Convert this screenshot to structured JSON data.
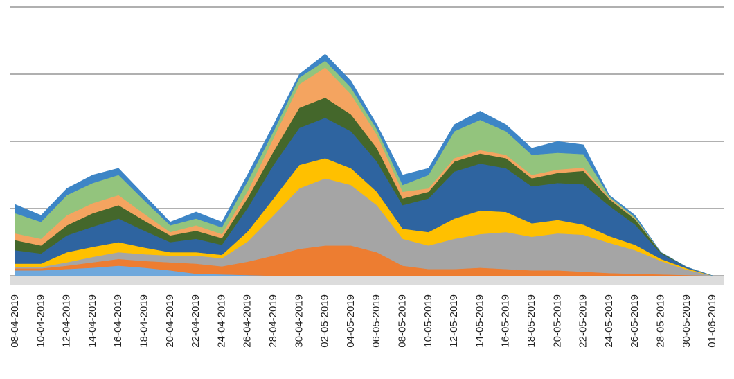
{
  "chart_data": {
    "type": "stacked_area",
    "categories": [
      "08-04-2019",
      "10-04-2019",
      "12-04-2019",
      "14-04-2019",
      "16-04-2019",
      "18-04-2019",
      "20-04-2019",
      "22-04-2019",
      "24-04-2019",
      "26-04-2019",
      "28-04-2019",
      "30-04-2019",
      "02-05-2019",
      "04-05-2019",
      "06-05-2019",
      "08-05-2019",
      "10-05-2019",
      "12-05-2019",
      "14-05-2019",
      "16-05-2019",
      "18-05-2019",
      "20-05-2019",
      "22-05-2019",
      "24-05-2019",
      "26-05-2019",
      "28-05-2019",
      "30-05-2019",
      "01-06-2019"
    ],
    "ylim": [
      0,
      4
    ],
    "yticks": [
      0,
      1,
      2,
      3,
      4
    ],
    "grid": true,
    "series": [
      {
        "color": "#6fa8dc",
        "values": [
          0.08,
          0.08,
          0.1,
          0.12,
          0.15,
          0.12,
          0.08,
          0.03,
          0.02,
          0.01,
          0,
          0,
          0,
          0,
          0,
          0,
          0,
          0,
          0,
          0,
          0,
          0,
          0,
          0,
          0,
          0,
          0,
          0
        ]
      },
      {
        "color": "#ed7d31",
        "values": [
          0.03,
          0.03,
          0.05,
          0.08,
          0.1,
          0.1,
          0.12,
          0.15,
          0.12,
          0.2,
          0.3,
          0.4,
          0.45,
          0.45,
          0.35,
          0.15,
          0.1,
          0.1,
          0.12,
          0.1,
          0.08,
          0.08,
          0.06,
          0.04,
          0.03,
          0.02,
          0.01,
          0
        ]
      },
      {
        "color": "#a5a5a5",
        "values": [
          0.02,
          0.02,
          0.05,
          0.08,
          0.1,
          0.1,
          0.1,
          0.12,
          0.12,
          0.3,
          0.6,
          0.9,
          1.0,
          0.9,
          0.7,
          0.4,
          0.35,
          0.45,
          0.5,
          0.55,
          0.5,
          0.55,
          0.55,
          0.45,
          0.35,
          0.2,
          0.08,
          0
        ]
      },
      {
        "color": "#ffc000",
        "values": [
          0.05,
          0.05,
          0.15,
          0.15,
          0.15,
          0.1,
          0.05,
          0.05,
          0.05,
          0.15,
          0.25,
          0.35,
          0.3,
          0.25,
          0.2,
          0.15,
          0.2,
          0.3,
          0.35,
          0.3,
          0.2,
          0.2,
          0.15,
          0.1,
          0.08,
          0.03,
          0.02,
          0
        ]
      },
      {
        "color": "#2e64a0",
        "values": [
          0.2,
          0.15,
          0.25,
          0.3,
          0.35,
          0.25,
          0.15,
          0.2,
          0.15,
          0.35,
          0.5,
          0.55,
          0.6,
          0.55,
          0.45,
          0.35,
          0.5,
          0.7,
          0.7,
          0.65,
          0.55,
          0.55,
          0.6,
          0.45,
          0.3,
          0.08,
          0.02,
          0
        ]
      },
      {
        "color": "#44672b",
        "values": [
          0.15,
          0.12,
          0.15,
          0.2,
          0.2,
          0.15,
          0.1,
          0.12,
          0.1,
          0.15,
          0.2,
          0.3,
          0.3,
          0.25,
          0.2,
          0.1,
          0.1,
          0.15,
          0.15,
          0.15,
          0.12,
          0.15,
          0.2,
          0.1,
          0.08,
          0.02,
          0,
          0
        ]
      },
      {
        "color": "#f4a460",
        "values": [
          0.1,
          0.1,
          0.15,
          0.15,
          0.15,
          0.1,
          0.05,
          0.08,
          0.06,
          0.1,
          0.2,
          0.35,
          0.45,
          0.3,
          0.2,
          0.1,
          0.05,
          0.05,
          0.05,
          0.05,
          0.05,
          0.05,
          0.05,
          0.02,
          0.01,
          0,
          0,
          0
        ]
      },
      {
        "color": "#93c47d",
        "values": [
          0.3,
          0.25,
          0.3,
          0.3,
          0.3,
          0.2,
          0.1,
          0.1,
          0.1,
          0.15,
          0.1,
          0.1,
          0.1,
          0.1,
          0.08,
          0.1,
          0.2,
          0.4,
          0.45,
          0.35,
          0.3,
          0.25,
          0.2,
          0.02,
          0.02,
          0,
          0,
          0
        ]
      },
      {
        "color": "#3d85c6",
        "values": [
          0.13,
          0.1,
          0.1,
          0.12,
          0.1,
          0.08,
          0.05,
          0.1,
          0.08,
          0.1,
          0.1,
          0.05,
          0.1,
          0.1,
          0.07,
          0.15,
          0.1,
          0.1,
          0.13,
          0.1,
          0.1,
          0.17,
          0.14,
          0.02,
          0.03,
          0,
          0,
          0
        ]
      }
    ]
  }
}
